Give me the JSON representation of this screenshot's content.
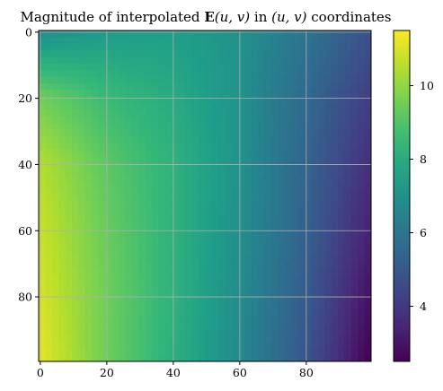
{
  "chart_data": {
    "type": "heatmap",
    "title": {
      "prefix": "Magnitude of interpolated ",
      "vector": "E",
      "args": "(u, v)",
      "middle": " in ",
      "coords": "(u, v)",
      "suffix": " coordinates"
    },
    "xlabel": "",
    "ylabel": "",
    "x_range": [
      0,
      99
    ],
    "y_range": [
      0,
      99
    ],
    "y_inverted": true,
    "x_ticks": [
      0,
      20,
      40,
      60,
      80
    ],
    "y_ticks": [
      0,
      20,
      40,
      60,
      80
    ],
    "grid": true,
    "colormap": "viridis",
    "colorbar": {
      "range": [
        2.5,
        11.5
      ],
      "ticks": [
        4,
        6,
        8,
        10
      ]
    },
    "field_samples": {
      "u": [
        0,
        20,
        40,
        60,
        80,
        99
      ],
      "v": [
        0,
        20,
        40,
        60,
        80,
        99
      ],
      "magnitude": [
        [
          6.9,
          7.4,
          7.5,
          7.1,
          6.0,
          4.8
        ],
        [
          9.5,
          8.6,
          8.0,
          7.1,
          5.6,
          4.2
        ],
        [
          10.5,
          9.2,
          8.3,
          7.1,
          5.4,
          3.8
        ],
        [
          10.8,
          9.4,
          8.3,
          7.0,
          5.3,
          3.4
        ],
        [
          11.0,
          9.5,
          8.3,
          6.9,
          5.1,
          3.0
        ],
        [
          11.2,
          9.5,
          8.2,
          6.8,
          4.9,
          2.6
        ]
      ]
    }
  }
}
